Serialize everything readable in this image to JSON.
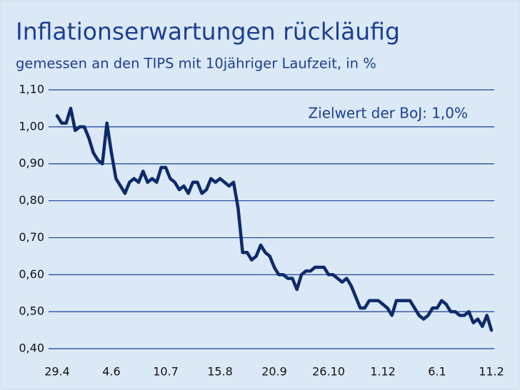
{
  "chart_data": {
    "type": "line",
    "title": "Inflationserwartungen rückläufig",
    "subtitle": "gemessen an den TIPS mit 10jähriger Laufzeit, in %",
    "annotation": "Zielwert der BoJ: 1,0%",
    "categories": [
      "29.4",
      null,
      null,
      null,
      null,
      null,
      null,
      null,
      null,
      null,
      null,
      null,
      "4.6",
      null,
      null,
      null,
      null,
      null,
      null,
      null,
      null,
      null,
      null,
      null,
      "10.7",
      null,
      null,
      null,
      null,
      null,
      null,
      null,
      null,
      null,
      null,
      null,
      "15.8",
      null,
      null,
      null,
      null,
      null,
      null,
      null,
      null,
      null,
      null,
      null,
      "20.9",
      null,
      null,
      null,
      null,
      null,
      null,
      null,
      null,
      null,
      null,
      null,
      "26.10",
      null,
      null,
      null,
      null,
      null,
      null,
      null,
      null,
      null,
      null,
      null,
      "1.12",
      null,
      null,
      null,
      null,
      null,
      null,
      null,
      null,
      null,
      null,
      null,
      "6.1",
      null,
      null,
      null,
      null,
      null,
      null,
      null,
      null,
      null,
      null,
      null,
      "11.2"
    ],
    "series": [
      {
        "name": "TIPS 10J",
        "color": "#0d2a6b",
        "values": [
          1.03,
          1.01,
          1.01,
          1.05,
          0.99,
          1.0,
          1.0,
          0.97,
          0.93,
          0.91,
          0.9,
          1.01,
          0.93,
          0.86,
          0.84,
          0.82,
          0.85,
          0.86,
          0.85,
          0.88,
          0.85,
          0.86,
          0.85,
          0.89,
          0.89,
          0.86,
          0.85,
          0.83,
          0.84,
          0.82,
          0.85,
          0.85,
          0.82,
          0.83,
          0.86,
          0.85,
          0.86,
          0.85,
          0.84,
          0.85,
          0.78,
          0.66,
          0.66,
          0.64,
          0.65,
          0.68,
          0.66,
          0.65,
          0.62,
          0.6,
          0.6,
          0.59,
          0.59,
          0.56,
          0.6,
          0.61,
          0.61,
          0.62,
          0.62,
          0.62,
          0.6,
          0.6,
          0.59,
          0.58,
          0.59,
          0.57,
          0.54,
          0.51,
          0.51,
          0.53,
          0.53,
          0.53,
          0.52,
          0.51,
          0.49,
          0.53,
          0.53,
          0.53,
          0.53,
          0.51,
          0.49,
          0.48,
          0.49,
          0.51,
          0.51,
          0.53,
          0.52,
          0.5,
          0.5,
          0.49,
          0.49,
          0.5,
          0.47,
          0.48,
          0.46,
          0.49,
          0.45
        ]
      }
    ],
    "ylim": [
      0.4,
      1.1
    ],
    "yticks": [
      {
        "value": 0.4,
        "label": "0,40"
      },
      {
        "value": 0.5,
        "label": "0,50"
      },
      {
        "value": 0.6,
        "label": "0,60"
      },
      {
        "value": 0.7,
        "label": "0,70"
      },
      {
        "value": 0.8,
        "label": "0,80"
      },
      {
        "value": 0.9,
        "label": "0,90"
      },
      {
        "value": 1.0,
        "label": "1,00"
      },
      {
        "value": 1.1,
        "label": "1,10"
      }
    ],
    "grid": true
  }
}
